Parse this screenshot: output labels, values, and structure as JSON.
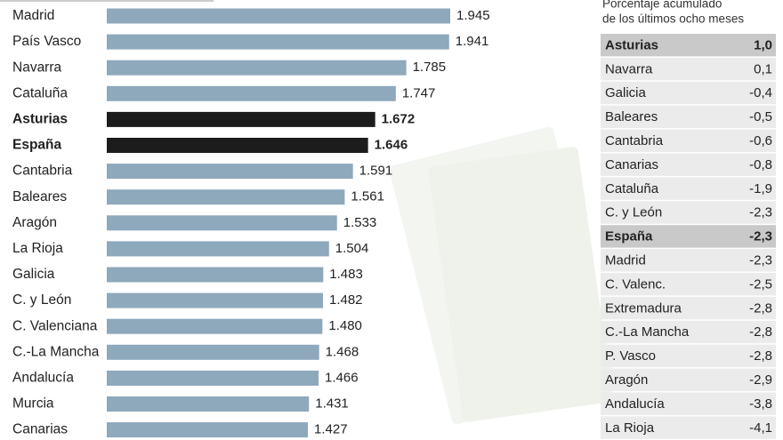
{
  "chart_data": {
    "type": "bar",
    "orientation": "horizontal",
    "categories": [
      "Madrid",
      "País Vasco",
      "Navarra",
      "Cataluña",
      "Asturias",
      "España",
      "Cantabria",
      "Baleares",
      "Aragón",
      "La Rioja",
      "Galicia",
      "C. y León",
      "C. Valenciana",
      "C.-La Mancha",
      "Andalucía",
      "Murcia",
      "Canarias"
    ],
    "values": [
      1945,
      1941,
      1785,
      1747,
      1672,
      1646,
      1591,
      1561,
      1533,
      1504,
      1483,
      1482,
      1480,
      1468,
      1466,
      1431,
      1427
    ],
    "value_labels": [
      "1.945",
      "1.941",
      "1.785",
      "1.747",
      "1.672",
      "1.646",
      "1.591",
      "1.561",
      "1.533",
      "1.504",
      "1.483",
      "1.482",
      "1.480",
      "1.468",
      "1.466",
      "1.431",
      "1.427"
    ],
    "color": "#8ea8bc",
    "colors": [
      "#8ea8bc",
      "#8ea8bc",
      "#8ea8bc",
      "#8ea8bc",
      "#1c1c1c",
      "#1c1c1c",
      "#8ea8bc",
      "#8ea8bc",
      "#8ea8bc",
      "#8ea8bc",
      "#8ea8bc",
      "#8ea8bc",
      "#8ea8bc",
      "#8ea8bc",
      "#8ea8bc",
      "#8ea8bc",
      "#8ea8bc"
    ]
  },
  "table": {
    "header": [
      "Porcentaje acumulado",
      "de los últimos ocho meses"
    ],
    "highlight_rows": [
      0,
      8
    ],
    "rows": [
      [
        "Asturias",
        "1,0"
      ],
      [
        "Navarra",
        "0,1"
      ],
      [
        "Galicia",
        "-0,4"
      ],
      [
        "Baleares",
        "-0,5"
      ],
      [
        "Cantabria",
        "-0,6"
      ],
      [
        "Canarias",
        "-0,8"
      ],
      [
        "Cataluña",
        "-1,9"
      ],
      [
        "C. y León",
        "-2,3"
      ],
      [
        "España",
        "-2,3"
      ],
      [
        "Madrid",
        "-2,3"
      ],
      [
        "C. Valenc.",
        "-2,5"
      ],
      [
        "Extremadura",
        "-2,8"
      ],
      [
        "C.-La Mancha",
        "-2,8"
      ],
      [
        "P. Vasco",
        "-2,8"
      ],
      [
        "Aragón",
        "-2,9"
      ],
      [
        "Andalucía",
        "-3,8"
      ],
      [
        "La Rioja",
        "-4,1"
      ]
    ]
  }
}
